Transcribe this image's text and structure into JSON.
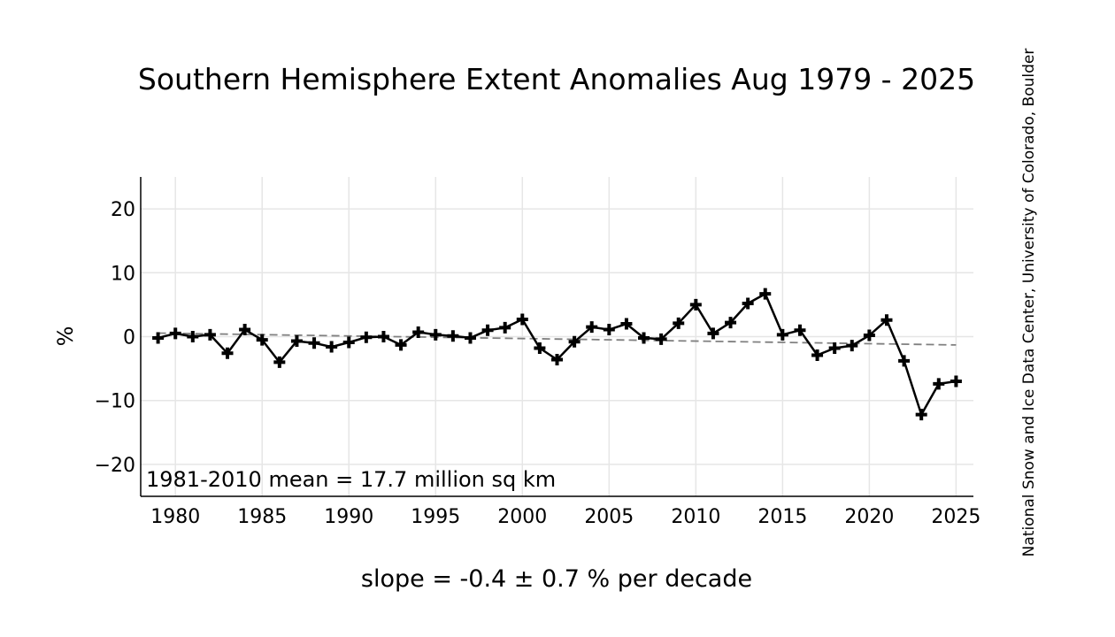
{
  "chart_data": {
    "type": "line",
    "title": "Southern Hemisphere Extent Anomalies Aug 1979 - 2025",
    "xlabel": "slope = -0.4 ± 0.7 % per decade",
    "ylabel": "%",
    "annotation": "1981-2010 mean = 17.7 million sq km",
    "credit": "National Snow and Ice Data Center, University of Colorado, Boulder",
    "xlim": [
      1978,
      2026
    ],
    "ylim": [
      -25,
      25
    ],
    "xticks": [
      1980,
      1985,
      1990,
      1995,
      2000,
      2005,
      2010,
      2015,
      2020,
      2025
    ],
    "yticks": [
      20,
      10,
      0,
      -10,
      -20
    ],
    "ytick_labels": [
      "20",
      "10",
      "0",
      "−10",
      "−20"
    ],
    "grid": true,
    "series": [
      {
        "x": [
          1979,
          1980,
          1981,
          1982,
          1983,
          1984,
          1985,
          1986,
          1987,
          1988,
          1989,
          1990,
          1991,
          1992,
          1993,
          1994,
          1995,
          1996,
          1997,
          1998,
          1999,
          2000,
          2001,
          2002,
          2003,
          2004,
          2005,
          2006,
          2007,
          2008,
          2009,
          2010,
          2011,
          2012,
          2013,
          2014,
          2015,
          2016,
          2017,
          2018,
          2019,
          2020,
          2021,
          2022,
          2023,
          2024,
          2025
        ],
        "values": [
          -0.2,
          0.5,
          0.0,
          0.3,
          -2.6,
          1.1,
          -0.5,
          -4.0,
          -0.7,
          -1.0,
          -1.6,
          -0.9,
          -0.1,
          0.0,
          -1.3,
          0.7,
          0.3,
          0.1,
          -0.2,
          1.0,
          1.4,
          2.7,
          -1.8,
          -3.6,
          -0.8,
          1.5,
          1.1,
          2.0,
          -0.2,
          -0.4,
          2.1,
          5.0,
          0.5,
          2.2,
          5.2,
          6.7,
          0.3,
          1.0,
          -2.9,
          -1.8,
          -1.4,
          0.2,
          2.6,
          -3.8,
          -12.2,
          -7.4,
          -7.0
        ],
        "color": "#000000",
        "marker": "plus"
      },
      {
        "x": [
          1979,
          2025
        ],
        "values": [
          0.55,
          -1.3
        ],
        "color": "#808080",
        "style": "dashed"
      }
    ]
  }
}
